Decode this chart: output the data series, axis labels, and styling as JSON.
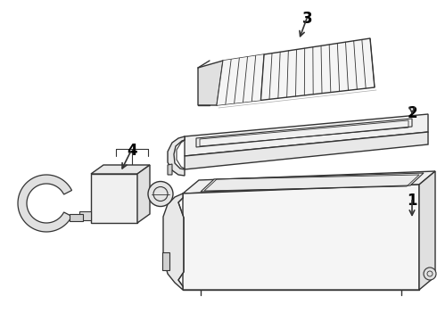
{
  "background_color": "#ffffff",
  "line_color": "#333333",
  "label_color": "#000000",
  "lw": 1.0
}
